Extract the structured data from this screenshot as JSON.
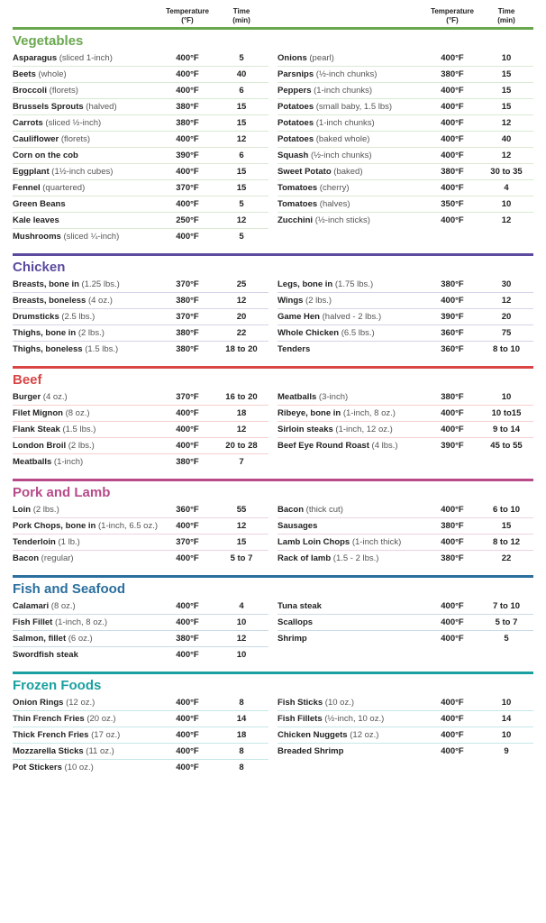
{
  "header": {
    "temp_label": "Temperature",
    "temp_unit": "(°F)",
    "time_label": "Time",
    "time_unit": "(min)"
  },
  "sections": [
    {
      "title": "Vegetables",
      "bar_color": "#6aa84f",
      "title_color": "#6aa84f",
      "left": [
        {
          "name": "Asparagus",
          "note": " (sliced 1-inch)",
          "temp": "400°F",
          "time": "5"
        },
        {
          "name": "Beets",
          "note": " (whole)",
          "temp": "400°F",
          "time": "40"
        },
        {
          "name": "Broccoli",
          "note": " (florets)",
          "temp": "400°F",
          "time": "6"
        },
        {
          "name": "Brussels Sprouts",
          "note": " (halved)",
          "temp": "380°F",
          "time": "15"
        },
        {
          "name": "Carrots",
          "note": " (sliced ½-inch)",
          "temp": "380°F",
          "time": "15"
        },
        {
          "name": "Cauliflower",
          "note": " (florets)",
          "temp": "400°F",
          "time": "12"
        },
        {
          "name": "Corn on the cob",
          "note": "",
          "temp": "390°F",
          "time": "6"
        },
        {
          "name": "Eggplant",
          "note": " (1½-inch cubes)",
          "temp": "400°F",
          "time": "15"
        },
        {
          "name": "Fennel",
          "note": " (quartered)",
          "temp": "370°F",
          "time": "15"
        },
        {
          "name": "Green Beans",
          "note": "",
          "temp": "400°F",
          "time": "5"
        },
        {
          "name": "Kale leaves",
          "note": "",
          "temp": "250°F",
          "time": "12"
        },
        {
          "name": "Mushrooms",
          "note": " (sliced ¼-inch)",
          "temp": "400°F",
          "time": "5"
        }
      ],
      "right": [
        {
          "name": "Onions",
          "note": " (pearl)",
          "temp": "400°F",
          "time": "10"
        },
        {
          "name": "Parsnips",
          "note": " (½-inch chunks)",
          "temp": "380°F",
          "time": "15"
        },
        {
          "name": "Peppers",
          "note": " (1-inch chunks)",
          "temp": "400°F",
          "time": "15"
        },
        {
          "name": "Potatoes",
          "note": " (small baby, 1.5 lbs)",
          "temp": "400°F",
          "time": "15"
        },
        {
          "name": "Potatoes",
          "note": " (1-inch chunks)",
          "temp": "400°F",
          "time": "12"
        },
        {
          "name": "Potatoes",
          "note": " (baked whole)",
          "temp": "400°F",
          "time": "40"
        },
        {
          "name": "Squash",
          "note": " (½-inch chunks)",
          "temp": "400°F",
          "time": "12"
        },
        {
          "name": "Sweet Potato",
          "note": " (baked)",
          "temp": "380°F",
          "time": "30 to 35"
        },
        {
          "name": "Tomatoes",
          "note": " (cherry)",
          "temp": "400°F",
          "time": "4"
        },
        {
          "name": "Tomatoes",
          "note": " (halves)",
          "temp": "350°F",
          "time": "10"
        },
        {
          "name": "Zucchini",
          "note": " (½-inch sticks)",
          "temp": "400°F",
          "time": "12"
        }
      ]
    },
    {
      "title": "Chicken",
      "bar_color": "#5b4a9e",
      "title_color": "#5b4a9e",
      "left": [
        {
          "name": "Breasts, bone in",
          "note": " (1.25 lbs.)",
          "temp": "370°F",
          "time": "25"
        },
        {
          "name": "Breasts, boneless",
          "note": "  (4 oz.)",
          "temp": "380°F",
          "time": "12"
        },
        {
          "name": "Drumsticks",
          "note": " (2.5 lbs.)",
          "temp": "370°F",
          "time": "20"
        },
        {
          "name": "Thighs, bone in",
          "note": "  (2 lbs.)",
          "temp": "380°F",
          "time": "22"
        },
        {
          "name": "Thighs, boneless",
          "note": " (1.5 lbs.)",
          "temp": "380°F",
          "time": "18 to 20"
        }
      ],
      "right": [
        {
          "name": "Legs, bone in",
          "note": "  (1.75 lbs.)",
          "temp": "380°F",
          "time": "30"
        },
        {
          "name": "Wings",
          "note": "  (2 lbs.)",
          "temp": "400°F",
          "time": "12"
        },
        {
          "name": "Game Hen",
          "note": " (halved - 2 lbs.)",
          "temp": "390°F",
          "time": "20"
        },
        {
          "name": "Whole Chicken",
          "note": " (6.5 lbs.)",
          "temp": "360°F",
          "time": "75"
        },
        {
          "name": "Tenders",
          "note": "",
          "temp": "360°F",
          "time": "8 to 10"
        }
      ]
    },
    {
      "title": "Beef",
      "bar_color": "#d94545",
      "title_color": "#d94545",
      "left": [
        {
          "name": "Burger",
          "note": "  (4 oz.)",
          "temp": "370°F",
          "time": "16 to 20"
        },
        {
          "name": "Filet Mignon",
          "note": " (8 oz.)",
          "temp": "400°F",
          "time": "18"
        },
        {
          "name": "Flank Steak",
          "note": "  (1.5 lbs.)",
          "temp": "400°F",
          "time": "12"
        },
        {
          "name": "London Broil",
          "note": "  (2 lbs.)",
          "temp": "400°F",
          "time": "20 to 28"
        },
        {
          "name": "Meatballs",
          "note": " (1-inch)",
          "temp": "380°F",
          "time": "7"
        }
      ],
      "right": [
        {
          "name": "Meatballs",
          "note": " (3-inch)",
          "temp": "380°F",
          "time": "10"
        },
        {
          "name": "Ribeye, bone in",
          "note": " (1-inch, 8 oz.)",
          "temp": "400°F",
          "time": "10 to15"
        },
        {
          "name": "Sirloin steaks",
          "note": " (1-inch, 12 oz.)",
          "temp": "400°F",
          "time": "9 to 14"
        },
        {
          "name": "Beef Eye Round Roast",
          "note": " (4 lbs.)",
          "temp": "390°F",
          "time": "45 to 55"
        }
      ]
    },
    {
      "title": "Pork and Lamb",
      "bar_color": "#b84a8a",
      "title_color": "#b84a8a",
      "left": [
        {
          "name": "Loin",
          "note": " (2 lbs.)",
          "temp": "360°F",
          "time": "55"
        },
        {
          "name": "Pork Chops, bone in",
          "note": " (1-inch, 6.5 oz.)",
          "temp": "400°F",
          "time": "12"
        },
        {
          "name": "Tenderloin",
          "note": " (1 lb.)",
          "temp": "370°F",
          "time": "15"
        },
        {
          "name": "Bacon",
          "note": " (regular)",
          "temp": "400°F",
          "time": "5 to 7"
        }
      ],
      "right": [
        {
          "name": "Bacon",
          "note": " (thick cut)",
          "temp": "400°F",
          "time": "6 to 10"
        },
        {
          "name": "Sausages",
          "note": "",
          "temp": "380°F",
          "time": "15"
        },
        {
          "name": "Lamb Loin Chops",
          "note": " (1-inch thick)",
          "temp": "400°F",
          "time": "8 to 12"
        },
        {
          "name": "Rack of lamb",
          "note": " (1.5 - 2 lbs.)",
          "temp": "380°F",
          "time": "22"
        }
      ]
    },
    {
      "title": "Fish and Seafood",
      "bar_color": "#2a6f9e",
      "title_color": "#2a6f9e",
      "left": [
        {
          "name": "Calamari",
          "note": " (8 oz.)",
          "temp": "400°F",
          "time": "4"
        },
        {
          "name": "Fish Fillet",
          "note": " (1-inch, 8 oz.)",
          "temp": "400°F",
          "time": "10"
        },
        {
          "name": "Salmon, fillet",
          "note": "  (6 oz.)",
          "temp": "380°F",
          "time": "12"
        },
        {
          "name": "Swordfish steak",
          "note": "",
          "temp": "400°F",
          "time": "10"
        }
      ],
      "right": [
        {
          "name": "Tuna steak",
          "note": "",
          "temp": "400°F",
          "time": "7 to 10"
        },
        {
          "name": "Scallops",
          "note": "",
          "temp": "400°F",
          "time": "5 to 7"
        },
        {
          "name": "Shrimp",
          "note": "",
          "temp": "400°F",
          "time": "5"
        }
      ]
    },
    {
      "title": "Frozen Foods",
      "bar_color": "#1aa0a0",
      "title_color": "#1aa0a0",
      "left": [
        {
          "name": "Onion Rings",
          "note": "  (12 oz.)",
          "temp": "400°F",
          "time": "8"
        },
        {
          "name": "Thin French Fries",
          "note": "  (20 oz.)",
          "temp": "400°F",
          "time": "14"
        },
        {
          "name": "Thick French Fries",
          "note": " (17 oz.)",
          "temp": "400°F",
          "time": "18"
        },
        {
          "name": "Mozzarella Sticks",
          "note": " (11 oz.)",
          "temp": "400°F",
          "time": "8"
        },
        {
          "name": "Pot Stickers",
          "note": " (10 oz.)",
          "temp": "400°F",
          "time": "8"
        }
      ],
      "right": [
        {
          "name": "Fish Sticks",
          "note": " (10 oz.)",
          "temp": "400°F",
          "time": "10"
        },
        {
          "name": "Fish Fillets",
          "note": " (½-inch, 10 oz.)",
          "temp": "400°F",
          "time": "14"
        },
        {
          "name": "Chicken Nuggets",
          "note": " (12 oz.)",
          "temp": "400°F",
          "time": "10"
        },
        {
          "name": "Breaded Shrimp",
          "note": "",
          "temp": "400°F",
          "time": "9"
        }
      ]
    }
  ]
}
